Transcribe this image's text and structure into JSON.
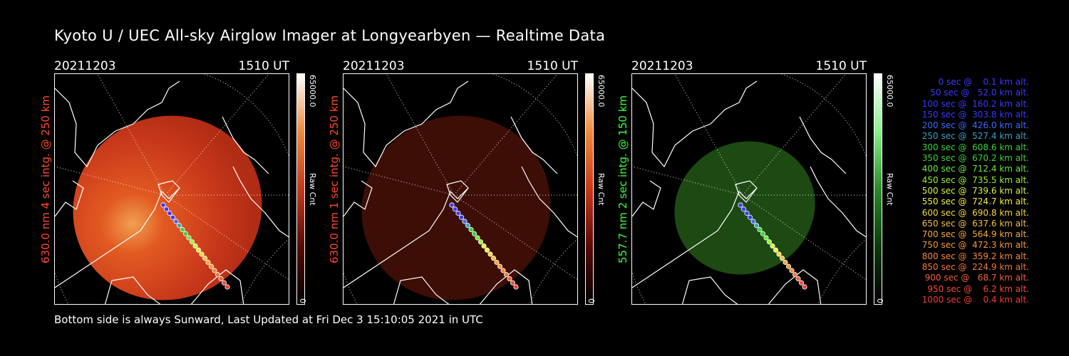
{
  "title": "Kyoto U / UEC All-sky Airglow Imager at Longyearbyen — Realtime Data",
  "panels": [
    {
      "date": "20211203",
      "time": "1510 UT",
      "label": "630.0 nm 4 sec intg. @ 250 km",
      "label_color": "#ff4a2a",
      "cbar_max": "65000.0",
      "cbar_min": "0",
      "cbar_title": "Raw Cnt"
    },
    {
      "date": "20211203",
      "time": "1510 UT",
      "label": "630.0 nm 1 sec intg. @ 250 km",
      "label_color": "#ff4a2a",
      "cbar_max": "65000.0",
      "cbar_min": "0",
      "cbar_title": "Raw Cnt"
    },
    {
      "date": "20211203",
      "time": "1510 UT",
      "label": "557.7 nm 2 sec intg. @ 150 km",
      "label_color": "#39ff39",
      "cbar_max": "65000.0",
      "cbar_min": "0",
      "cbar_title": "Raw Cnt"
    }
  ],
  "footer": "Bottom side is always Sunward, Last Updated at Fri Dec  3 15:10:05 2021 in UTC",
  "legend": [
    {
      "text": "   0 sec @    0.1 km alt.",
      "color": "#3a3aff"
    },
    {
      "text": "  50 sec @   52.0 km alt.",
      "color": "#3a3aff"
    },
    {
      "text": " 100 sec @  160.2 km alt.",
      "color": "#3a3aff"
    },
    {
      "text": " 150 sec @  303.8 km alt.",
      "color": "#3a3aff"
    },
    {
      "text": " 200 sec @  426.0 km alt.",
      "color": "#3a6cff"
    },
    {
      "text": " 250 sec @  527.4 km alt.",
      "color": "#3aa0c8"
    },
    {
      "text": " 300 sec @  608.6 km alt.",
      "color": "#3ad23a"
    },
    {
      "text": " 350 sec @  670.2 km alt.",
      "color": "#3ad23a"
    },
    {
      "text": " 400 sec @  712.4 km alt.",
      "color": "#6be83a"
    },
    {
      "text": " 450 sec @  735.5 km alt.",
      "color": "#9bf03a"
    },
    {
      "text": " 500 sec @  739.6 km alt.",
      "color": "#d6f53a"
    },
    {
      "text": " 550 sec @  724.7 km alt.",
      "color": "#f5f03a"
    },
    {
      "text": " 600 sec @  690.8 km alt.",
      "color": "#f5d83a"
    },
    {
      "text": " 650 sec @  637.6 km alt.",
      "color": "#f5c03a"
    },
    {
      "text": " 700 sec @  564.9 km alt.",
      "color": "#f5a83a"
    },
    {
      "text": " 750 sec @  472.3 km alt.",
      "color": "#f5983a"
    },
    {
      "text": " 800 sec @  359.2 km alt.",
      "color": "#f5883a"
    },
    {
      "text": " 850 sec @  224.9 km alt.",
      "color": "#f5783a"
    },
    {
      "text": " 900 sec @   68.7 km alt.",
      "color": "#f5603a"
    },
    {
      "text": " 950 sec @    6.2 km alt.",
      "color": "#f54a3a"
    },
    {
      "text": "1000 sec @    0.4 km alt.",
      "color": "#f53a3a"
    }
  ],
  "colors": {
    "panel1_glow": "#e8441a",
    "panel2_glow": "#3a0c04",
    "panel3_glow": "#1b4a12"
  }
}
